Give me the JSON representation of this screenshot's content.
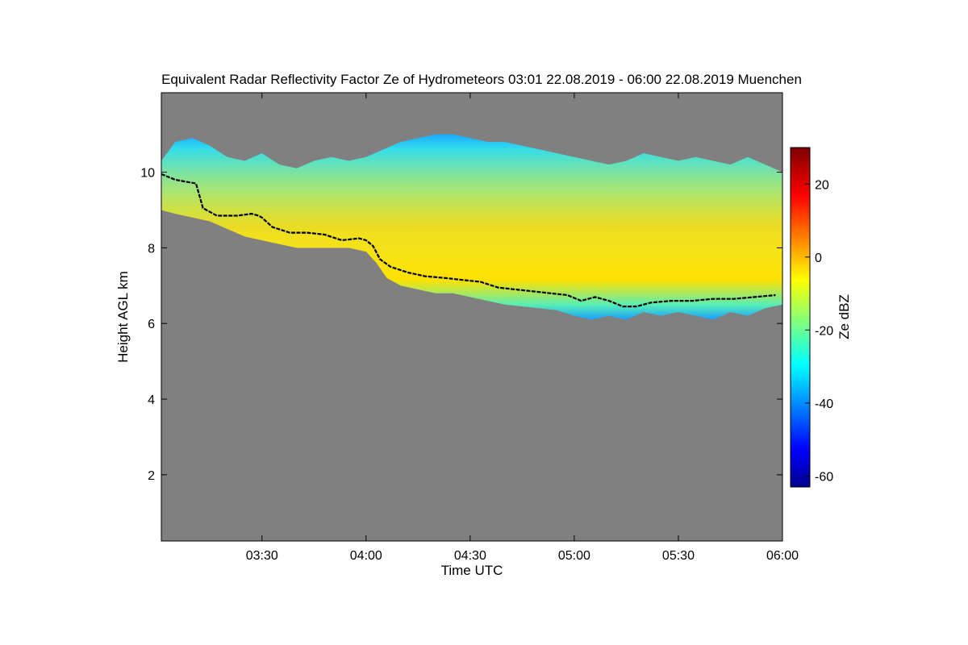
{
  "chart_data": {
    "type": "heatmap",
    "title": "Equivalent Radar Reflectivity Factor Ze of Hydrometeors   03:01 22.08.2019 - 06:00 22.08.2019 Muenchen",
    "xlabel": "Time UTC",
    "ylabel": "Height AGL km",
    "x_ticks": [
      "03:30",
      "04:00",
      "04:30",
      "05:00",
      "05:30",
      "06:00"
    ],
    "x_tick_minutes": [
      210,
      240,
      270,
      300,
      330,
      360
    ],
    "xlim_minutes": [
      181,
      360
    ],
    "y_ticks": [
      2,
      4,
      6,
      8,
      10
    ],
    "ylim": [
      0.25,
      12.1
    ],
    "colorbar": {
      "label": "Ze dBZ",
      "ticks": [
        20,
        0,
        -20,
        -40,
        -60
      ],
      "range": [
        -63,
        30
      ],
      "colormap": "jet"
    },
    "background_color": "#808080",
    "cloud_top_km": [
      [
        181,
        10.3
      ],
      [
        185,
        10.8
      ],
      [
        190,
        10.9
      ],
      [
        195,
        10.7
      ],
      [
        200,
        10.4
      ],
      [
        205,
        10.3
      ],
      [
        210,
        10.5
      ],
      [
        215,
        10.2
      ],
      [
        220,
        10.1
      ],
      [
        225,
        10.3
      ],
      [
        230,
        10.4
      ],
      [
        235,
        10.3
      ],
      [
        240,
        10.4
      ],
      [
        245,
        10.6
      ],
      [
        250,
        10.8
      ],
      [
        255,
        10.9
      ],
      [
        260,
        11.0
      ],
      [
        265,
        11.0
      ],
      [
        270,
        10.9
      ],
      [
        275,
        10.8
      ],
      [
        280,
        10.8
      ],
      [
        285,
        10.7
      ],
      [
        290,
        10.6
      ],
      [
        295,
        10.5
      ],
      [
        300,
        10.4
      ],
      [
        305,
        10.3
      ],
      [
        310,
        10.2
      ],
      [
        315,
        10.3
      ],
      [
        320,
        10.5
      ],
      [
        325,
        10.4
      ],
      [
        330,
        10.3
      ],
      [
        335,
        10.4
      ],
      [
        340,
        10.3
      ],
      [
        345,
        10.2
      ],
      [
        350,
        10.4
      ],
      [
        355,
        10.2
      ],
      [
        360,
        10.0
      ]
    ],
    "cloud_base_km": [
      [
        181,
        9.0
      ],
      [
        185,
        8.9
      ],
      [
        190,
        8.8
      ],
      [
        195,
        8.7
      ],
      [
        200,
        8.5
      ],
      [
        205,
        8.3
      ],
      [
        210,
        8.2
      ],
      [
        215,
        8.1
      ],
      [
        220,
        8.0
      ],
      [
        225,
        8.0
      ],
      [
        230,
        8.0
      ],
      [
        235,
        8.0
      ],
      [
        240,
        7.9
      ],
      [
        243,
        7.6
      ],
      [
        246,
        7.2
      ],
      [
        250,
        7.0
      ],
      [
        255,
        6.9
      ],
      [
        260,
        6.8
      ],
      [
        265,
        6.8
      ],
      [
        270,
        6.7
      ],
      [
        275,
        6.6
      ],
      [
        280,
        6.5
      ],
      [
        285,
        6.45
      ],
      [
        290,
        6.4
      ],
      [
        295,
        6.35
      ],
      [
        300,
        6.2
      ],
      [
        305,
        6.1
      ],
      [
        310,
        6.2
      ],
      [
        315,
        6.1
      ],
      [
        320,
        6.3
      ],
      [
        325,
        6.2
      ],
      [
        330,
        6.3
      ],
      [
        335,
        6.2
      ],
      [
        340,
        6.1
      ],
      [
        345,
        6.3
      ],
      [
        350,
        6.2
      ],
      [
        355,
        6.4
      ],
      [
        360,
        6.5
      ]
    ],
    "black_line_km": [
      [
        181,
        9.95
      ],
      [
        185,
        9.8
      ],
      [
        188,
        9.75
      ],
      [
        191,
        9.7
      ],
      [
        193,
        9.05
      ],
      [
        197,
        8.85
      ],
      [
        203,
        8.85
      ],
      [
        207,
        8.9
      ],
      [
        209,
        8.85
      ],
      [
        210,
        8.8
      ],
      [
        213,
        8.55
      ],
      [
        218,
        8.4
      ],
      [
        223,
        8.4
      ],
      [
        228,
        8.35
      ],
      [
        233,
        8.2
      ],
      [
        238,
        8.25
      ],
      [
        240,
        8.2
      ],
      [
        242,
        8.05
      ],
      [
        244,
        7.7
      ],
      [
        247,
        7.5
      ],
      [
        252,
        7.35
      ],
      [
        257,
        7.25
      ],
      [
        263,
        7.2
      ],
      [
        268,
        7.15
      ],
      [
        273,
        7.1
      ],
      [
        278,
        6.95
      ],
      [
        283,
        6.9
      ],
      [
        288,
        6.85
      ],
      [
        293,
        6.8
      ],
      [
        298,
        6.75
      ],
      [
        302,
        6.6
      ],
      [
        306,
        6.7
      ],
      [
        310,
        6.6
      ],
      [
        314,
        6.45
      ],
      [
        318,
        6.45
      ],
      [
        322,
        6.55
      ],
      [
        328,
        6.6
      ],
      [
        334,
        6.6
      ],
      [
        340,
        6.65
      ],
      [
        346,
        6.65
      ],
      [
        352,
        6.7
      ],
      [
        358,
        6.75
      ]
    ]
  }
}
